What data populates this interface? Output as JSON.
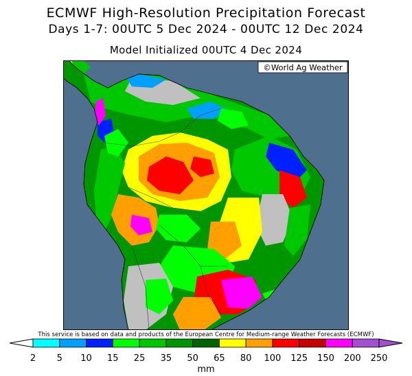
{
  "header": {
    "title": "ECMWF High-Resolution Precipitation Forecast",
    "subtitle": "Days 1-7: 00UTC 5 Dec 2024 - 00UTC 12 Dec 2024",
    "initialized": "Model Initialized 00UTC 4 Dec 2024"
  },
  "map": {
    "watermark": "©World Ag Weather",
    "region": "South America",
    "ocean_color": "#4f6f8f",
    "land_dry_color": "#c0c0c0"
  },
  "footer": {
    "attribution": "This service is based on data and products of the European Centre for Medium-range Weather Forecasts (ECMWF)"
  },
  "legend": {
    "unit": "mm",
    "ticks": [
      "2",
      "5",
      "10",
      "15",
      "25",
      "35",
      "50",
      "65",
      "80",
      "100",
      "125",
      "150",
      "200",
      "250"
    ],
    "colors": [
      "#00ffff",
      "#00a0ff",
      "#0020ff",
      "#00ff00",
      "#00c800",
      "#009600",
      "#006400",
      "#ffff00",
      "#ffa000",
      "#ff0000",
      "#c80000",
      "#ff00ff",
      "#a050d0"
    ]
  }
}
